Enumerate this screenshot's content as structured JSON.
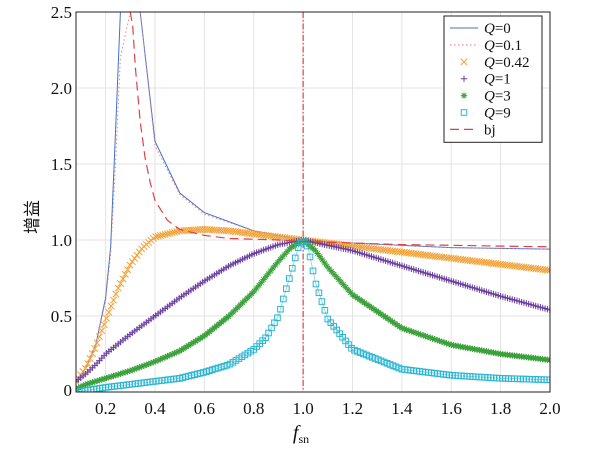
{
  "chart_data": {
    "type": "line",
    "xlabel_main": "f",
    "xlabel_sub": "sn",
    "ylabel": "增益",
    "xlim": [
      0.08,
      2.0
    ],
    "ylim": [
      0,
      2.5
    ],
    "xticks": [
      "0.2",
      "0.4",
      "0.6",
      "0.8",
      "1.0",
      "1.2",
      "1.4",
      "1.6",
      "1.8",
      "2.0"
    ],
    "xtick_values": [
      0.2,
      0.4,
      0.6,
      0.8,
      1.0,
      1.2,
      1.4,
      1.6,
      1.8,
      2.0
    ],
    "yticks": [
      "0",
      "0.5",
      "1.0",
      "1.5",
      "2.0",
      "2.5"
    ],
    "ytick_values": [
      0,
      0.5,
      1.0,
      1.5,
      2.0,
      2.5
    ],
    "grid": true,
    "legend_position": "top-right",
    "vertical_reference_x": 1.0,
    "series": [
      {
        "id": "q0",
        "label_var": "Q",
        "label_val": "=0",
        "color": "#4472c4",
        "marker": "line-solid",
        "Q": 0,
        "x": [
          0.08,
          0.12,
          0.16,
          0.2,
          0.22,
          0.24,
          0.26,
          0.3,
          0.34,
          0.4,
          0.5,
          0.6,
          0.8,
          1.0,
          1.2,
          1.6,
          2.0
        ],
        "y": [
          0.07,
          0.16,
          0.31,
          0.62,
          0.95,
          1.71,
          2.5,
          2.5,
          2.5,
          1.65,
          1.31,
          1.18,
          1.06,
          1.0,
          0.98,
          0.95,
          0.94
        ]
      },
      {
        "id": "q01",
        "label_var": "Q",
        "label_val": "=0.1",
        "color": "#e8808a",
        "marker": "line-dotted",
        "Q": 0.1,
        "x": [
          0.08,
          0.12,
          0.16,
          0.2,
          0.22,
          0.24,
          0.26,
          0.3,
          0.34,
          0.4,
          0.5,
          0.6,
          0.8,
          1.0,
          1.2,
          1.6,
          2.0
        ],
        "y": [
          0.07,
          0.16,
          0.31,
          0.6,
          0.9,
          1.5,
          2.2,
          2.5,
          2.5,
          1.62,
          1.3,
          1.17,
          1.06,
          1.0,
          0.98,
          0.95,
          0.94
        ]
      },
      {
        "id": "q042",
        "label_var": "Q",
        "label_val": "=0.42",
        "color": "#f2a33a",
        "marker": "x",
        "Q": 0.42,
        "x": [
          0.08,
          0.12,
          0.16,
          0.2,
          0.25,
          0.3,
          0.35,
          0.4,
          0.5,
          0.6,
          0.7,
          0.8,
          0.9,
          1.0,
          1.2,
          1.4,
          1.6,
          1.8,
          2.0
        ],
        "y": [
          0.07,
          0.16,
          0.3,
          0.47,
          0.68,
          0.84,
          0.95,
          1.02,
          1.06,
          1.07,
          1.06,
          1.04,
          1.02,
          1.0,
          0.96,
          0.92,
          0.88,
          0.84,
          0.8
        ]
      },
      {
        "id": "q1",
        "label_var": "Q",
        "label_val": "=1",
        "color": "#6a3fa0",
        "marker": "plus",
        "Q": 1,
        "x": [
          0.08,
          0.12,
          0.16,
          0.2,
          0.3,
          0.4,
          0.5,
          0.6,
          0.7,
          0.8,
          0.9,
          1.0,
          1.2,
          1.4,
          1.6,
          1.8,
          2.0
        ],
        "y": [
          0.07,
          0.12,
          0.18,
          0.25,
          0.38,
          0.5,
          0.62,
          0.73,
          0.83,
          0.91,
          0.97,
          1.0,
          0.93,
          0.83,
          0.73,
          0.63,
          0.54
        ]
      },
      {
        "id": "q3",
        "label_var": "Q",
        "label_val": "=3",
        "color": "#3aa13a",
        "marker": "star",
        "Q": 3,
        "x": [
          0.08,
          0.12,
          0.16,
          0.2,
          0.3,
          0.4,
          0.5,
          0.6,
          0.7,
          0.8,
          0.9,
          0.95,
          1.0,
          1.05,
          1.1,
          1.2,
          1.4,
          1.6,
          1.8,
          2.0
        ],
        "y": [
          0.02,
          0.05,
          0.07,
          0.09,
          0.14,
          0.2,
          0.27,
          0.37,
          0.5,
          0.66,
          0.86,
          0.95,
          1.0,
          0.93,
          0.82,
          0.64,
          0.42,
          0.31,
          0.25,
          0.21
        ]
      },
      {
        "id": "q9",
        "label_var": "Q",
        "label_val": "=9",
        "color": "#29b6d3",
        "marker": "square",
        "Q": 9,
        "x": [
          0.08,
          0.12,
          0.16,
          0.2,
          0.3,
          0.4,
          0.5,
          0.6,
          0.7,
          0.8,
          0.85,
          0.9,
          0.95,
          0.98,
          1.0,
          1.02,
          1.05,
          1.1,
          1.2,
          1.4,
          1.6,
          1.8,
          2.0
        ],
        "y": [
          0.0,
          0.01,
          0.02,
          0.03,
          0.05,
          0.07,
          0.09,
          0.13,
          0.18,
          0.28,
          0.36,
          0.5,
          0.78,
          0.95,
          1.0,
          0.95,
          0.72,
          0.48,
          0.28,
          0.15,
          0.11,
          0.09,
          0.08
        ]
      },
      {
        "id": "bj",
        "label_var": "",
        "label_val": "bj",
        "color": "#e0404a",
        "marker": "line-dashed",
        "Q": null,
        "x": [
          0.3,
          0.31,
          0.32,
          0.34,
          0.36,
          0.38,
          0.4,
          0.45,
          0.5,
          0.6,
          0.7,
          0.8,
          0.9,
          1.0,
          1.2,
          1.4,
          1.6,
          1.8,
          2.0
        ],
        "y": [
          2.5,
          2.4,
          2.14,
          1.78,
          1.54,
          1.38,
          1.26,
          1.13,
          1.07,
          1.03,
          1.01,
          1.005,
          1.0,
          0.99,
          0.98,
          0.97,
          0.965,
          0.96,
          0.955
        ]
      }
    ]
  }
}
